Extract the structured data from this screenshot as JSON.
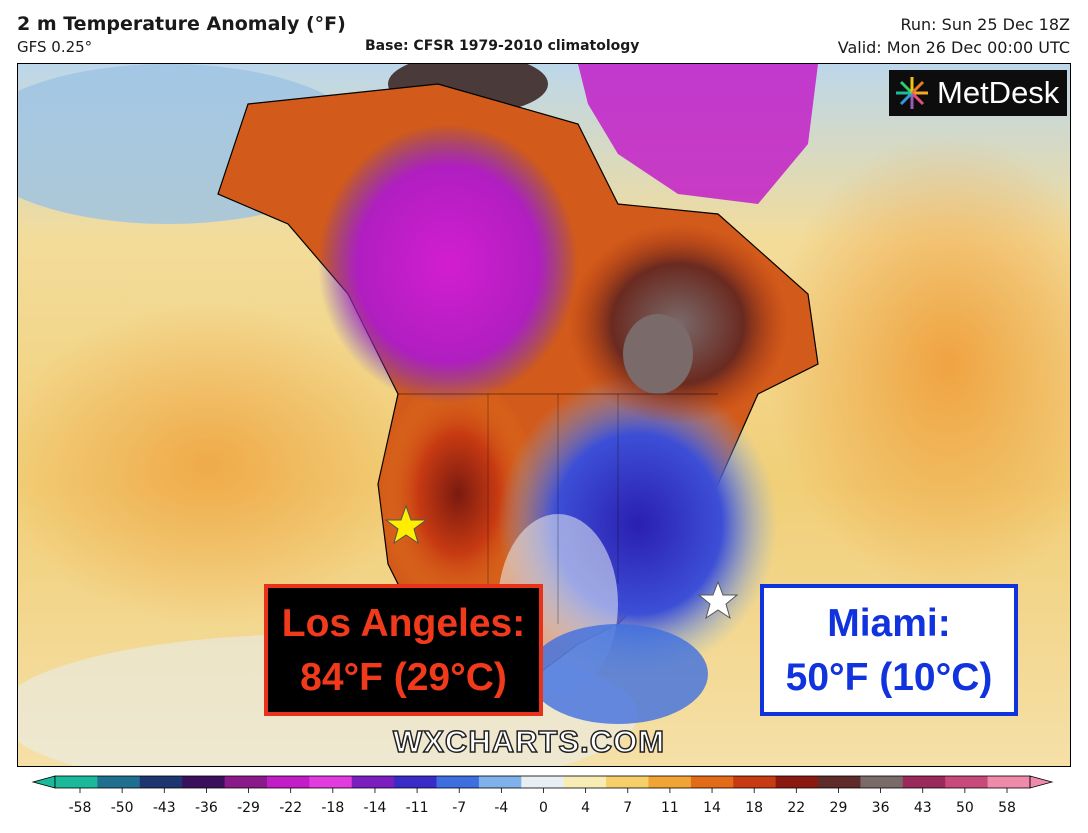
{
  "header": {
    "title": "2 m Temperature Anomaly (°F)",
    "model": "GFS 0.25°",
    "base": "Base: CFSR 1979-2010 climatology",
    "run": "Run: Sun 25 Dec 18Z",
    "valid": "Valid: Mon 26 Dec 00:00 UTC"
  },
  "logo": {
    "text": "MetDesk"
  },
  "watermark": "WXCHARTS.COM",
  "callouts": {
    "los_angeles": {
      "line1": "Los Angeles:",
      "line2": "84°F (29°C)",
      "color": "#f13a1c",
      "marker_color": "#ffee00"
    },
    "miami": {
      "line1": "Miami:",
      "line2": "50°F (10°C)",
      "color": "#1133dd",
      "marker_color": "#ffffff"
    }
  },
  "colorbar": {
    "ticks": [
      "-58",
      "-50",
      "-43",
      "-36",
      "-29",
      "-22",
      "-18",
      "-14",
      "-11",
      "-7",
      "-4",
      "0",
      "4",
      "7",
      "11",
      "14",
      "18",
      "22",
      "29",
      "36",
      "43",
      "50",
      "58"
    ],
    "colors": [
      "#1ab99a",
      "#1f6f8f",
      "#1d3570",
      "#3a0f5c",
      "#8a1a8a",
      "#c21ec8",
      "#e23be0",
      "#7a1ec0",
      "#3a2bc8",
      "#3e6fe0",
      "#7fb2ea",
      "#e9eef3",
      "#f6ecb4",
      "#f4cf6a",
      "#f1a436",
      "#e26a18",
      "#c73a12",
      "#8a1a10",
      "#5e2a2a",
      "#7a6a6a",
      "#9a2a5a",
      "#c84a7a",
      "#ee8aaa"
    ]
  },
  "colors": {
    "ocean_warm": "#f1cf78",
    "land_cold": "#3d4fd6",
    "land_warm": "#d25a1a"
  }
}
